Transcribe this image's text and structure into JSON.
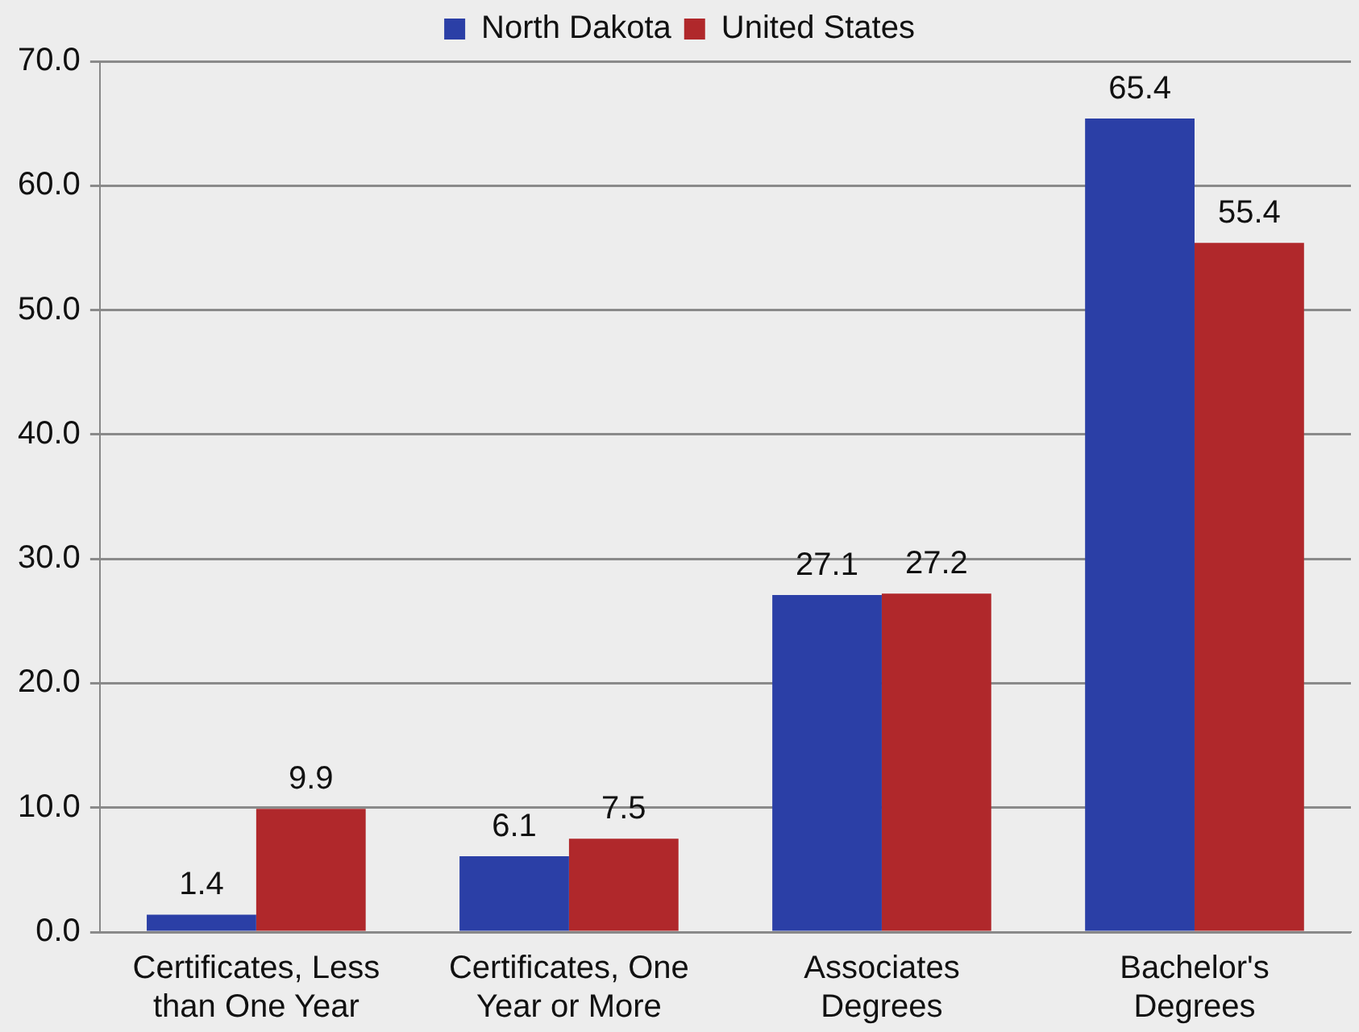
{
  "chart_data": {
    "type": "bar",
    "categories": [
      "Certificates, Less than One Year",
      "Certificates, One Year or More",
      "Associates Degrees",
      "Bachelor's Degrees"
    ],
    "series": [
      {
        "name": "North Dakota",
        "color": "#2b3fa6",
        "values": [
          1.4,
          6.1,
          27.1,
          65.4
        ]
      },
      {
        "name": "United States",
        "color": "#b0282b",
        "values": [
          9.9,
          7.5,
          27.2,
          55.4
        ]
      }
    ],
    "ylim": [
      0,
      70
    ],
    "yticks": [
      {
        "value": 0,
        "label": "0.0"
      },
      {
        "value": 10,
        "label": "10.0"
      },
      {
        "value": 20,
        "label": "20.0"
      },
      {
        "value": 30,
        "label": "30.0"
      },
      {
        "value": 40,
        "label": "40.0"
      },
      {
        "value": 50,
        "label": "50.0"
      },
      {
        "value": 60,
        "label": "60.0"
      },
      {
        "value": 70,
        "label": "70.0"
      }
    ],
    "grid": "y",
    "legend": "top",
    "data_labels": true
  }
}
